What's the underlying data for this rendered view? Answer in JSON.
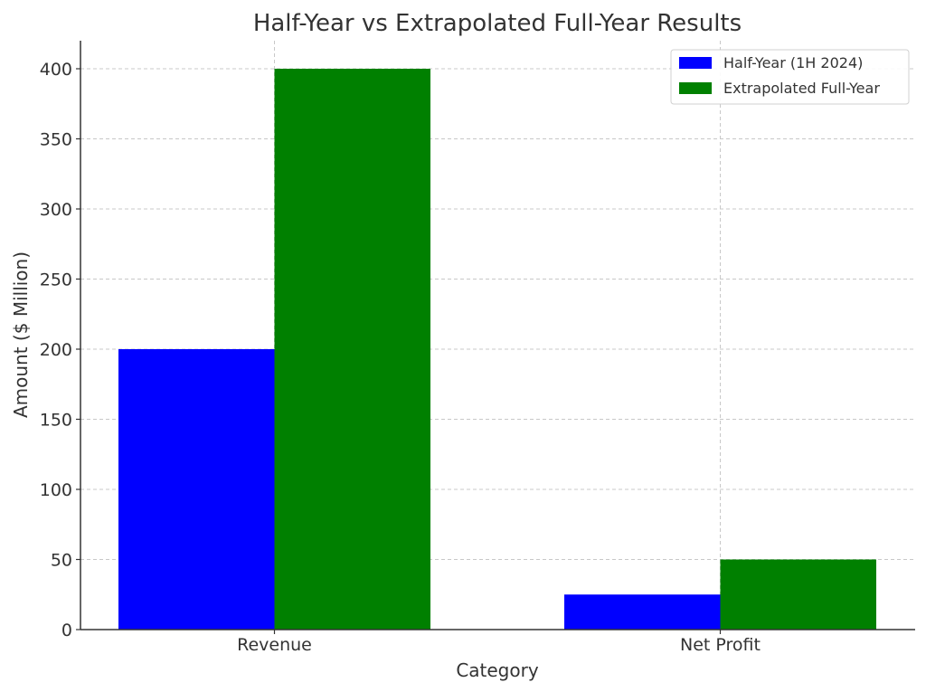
{
  "chart_data": {
    "type": "bar",
    "title": "Half-Year vs Extrapolated Full-Year Results",
    "xlabel": "Category",
    "ylabel": "Amount ($ Million)",
    "categories": [
      "Revenue",
      "Net Profit"
    ],
    "series": [
      {
        "name": "Half-Year (1H 2024)",
        "values": [
          200,
          25
        ],
        "color": "#0000ff"
      },
      {
        "name": "Extrapolated Full-Year",
        "values": [
          400,
          50
        ],
        "color": "#008000"
      }
    ],
    "ylim": [
      0,
      420
    ],
    "yticks": [
      0,
      50,
      100,
      150,
      200,
      250,
      300,
      350,
      400
    ],
    "grid": true,
    "legend_position": "top-right"
  }
}
